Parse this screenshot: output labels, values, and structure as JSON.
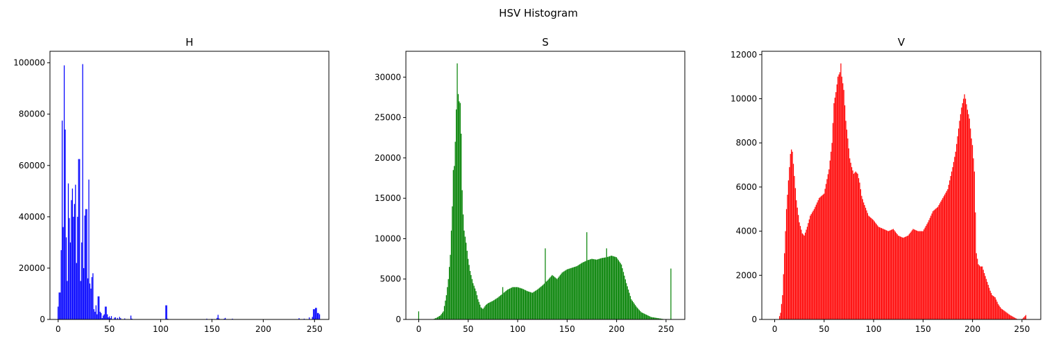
{
  "figure": {
    "suptitle": "HSV Histogram"
  },
  "chart_data": [
    {
      "type": "bar",
      "title": "H",
      "color": "#0000ff",
      "xlabel": "",
      "ylabel": "",
      "xlim": [
        -8,
        264
      ],
      "ylim": [
        0,
        104500
      ],
      "xticks": [
        0,
        50,
        100,
        150,
        200,
        250
      ],
      "yticks": [
        0,
        20000,
        40000,
        60000,
        80000,
        100000
      ],
      "grid": false,
      "x": [
        0,
        1,
        2,
        3,
        4,
        5,
        6,
        7,
        8,
        9,
        10,
        11,
        12,
        13,
        14,
        15,
        16,
        17,
        18,
        19,
        20,
        21,
        22,
        23,
        24,
        25,
        26,
        27,
        28,
        29,
        30,
        31,
        32,
        33,
        34,
        35,
        36,
        37,
        38,
        39,
        40,
        41,
        42,
        43,
        44,
        45,
        46,
        47,
        48,
        49,
        50,
        51,
        52,
        55,
        56,
        58,
        60,
        61,
        65,
        71,
        72,
        105,
        106,
        107,
        145,
        150,
        155,
        156,
        157,
        162,
        163,
        170,
        235,
        240,
        245,
        248,
        249,
        250,
        251,
        252,
        253,
        254,
        255
      ],
      "values": [
        5000,
        10500,
        10500,
        27000,
        77500,
        36000,
        99000,
        74000,
        32000,
        15000,
        53000,
        39500,
        30000,
        46500,
        51000,
        40000,
        45000,
        52500,
        22000,
        40000,
        62500,
        62500,
        15000,
        30000,
        99500,
        20000,
        40500,
        43000,
        43000,
        16000,
        54500,
        14000,
        12000,
        16500,
        18000,
        4000,
        3000,
        5500,
        2000,
        9000,
        9000,
        3000,
        2500,
        500,
        1500,
        2000,
        5000,
        5000,
        2000,
        800,
        1200,
        500,
        1300,
        700,
        800,
        600,
        1000,
        500,
        400,
        1500,
        300,
        5500,
        5500,
        300,
        300,
        200,
        600,
        1800,
        400,
        300,
        600,
        300,
        500,
        300,
        800,
        1000,
        4000,
        4000,
        4500,
        4500,
        2500,
        2500,
        2000
      ]
    },
    {
      "type": "bar",
      "title": "S",
      "color": "#008000",
      "xlabel": "",
      "ylabel": "",
      "xlim": [
        -13,
        269
      ],
      "ylim": [
        0,
        33200
      ],
      "xticks": [
        0,
        50,
        100,
        150,
        200,
        250
      ],
      "yticks": [
        0,
        5000,
        10000,
        15000,
        20000,
        25000,
        30000
      ],
      "grid": false,
      "curve_x": [
        0,
        14,
        18,
        22,
        25,
        28,
        30,
        32,
        34,
        35,
        36,
        37,
        38,
        39,
        40,
        41,
        42,
        43,
        44,
        45,
        46,
        48,
        50,
        52,
        55,
        58,
        60,
        63,
        65,
        68,
        70,
        75,
        80,
        85,
        90,
        95,
        100,
        105,
        110,
        115,
        120,
        125,
        130,
        135,
        140,
        145,
        150,
        155,
        160,
        165,
        170,
        175,
        180,
        185,
        190,
        195,
        200,
        205,
        210,
        215,
        220,
        225,
        230,
        235,
        240,
        245,
        250,
        255
      ],
      "curve_y": [
        0,
        0,
        200,
        500,
        1000,
        3000,
        5000,
        8000,
        14000,
        18500,
        19000,
        22000,
        26000,
        31000,
        28000,
        27000,
        26500,
        23000,
        16000,
        13000,
        11000,
        9500,
        7500,
        6000,
        4500,
        3500,
        2500,
        1500,
        1300,
        1800,
        2000,
        2300,
        2700,
        3200,
        3700,
        4000,
        4000,
        3800,
        3500,
        3300,
        3700,
        4200,
        4800,
        5500,
        5000,
        5800,
        6200,
        6400,
        6600,
        7000,
        7300,
        7500,
        7400,
        7600,
        7700,
        7900,
        7700,
        6800,
        4500,
        2500,
        1600,
        900,
        600,
        300,
        200,
        100,
        0,
        0
      ],
      "spikes": [
        [
          0,
          1000
        ],
        [
          85,
          4000
        ],
        [
          128,
          8800
        ],
        [
          170,
          10800
        ],
        [
          190,
          8800
        ],
        [
          255,
          6300
        ],
        [
          39,
          31700
        ],
        [
          40,
          27900
        ],
        [
          42,
          26800
        ]
      ]
    },
    {
      "type": "bar",
      "title": "V",
      "color": "#ff0000",
      "xlabel": "",
      "ylabel": "",
      "xlim": [
        -13,
        269
      ],
      "ylim": [
        0,
        12150
      ],
      "xticks": [
        0,
        50,
        100,
        150,
        200,
        250
      ],
      "yticks": [
        0,
        2000,
        4000,
        6000,
        8000,
        10000,
        12000
      ],
      "grid": false,
      "curve_x": [
        0,
        4,
        6,
        8,
        10,
        12,
        14,
        16,
        17,
        18,
        20,
        22,
        25,
        28,
        30,
        33,
        36,
        40,
        45,
        50,
        55,
        58,
        60,
        62,
        64,
        66,
        67,
        68,
        70,
        72,
        74,
        76,
        78,
        80,
        82,
        84,
        86,
        88,
        90,
        95,
        100,
        105,
        110,
        115,
        120,
        125,
        130,
        135,
        140,
        145,
        150,
        155,
        160,
        165,
        170,
        175,
        180,
        183,
        185,
        187,
        189,
        191,
        192,
        193,
        195,
        197,
        199,
        200,
        202,
        204,
        206,
        208,
        210,
        212,
        215,
        218,
        220,
        223,
        226,
        229,
        232,
        235,
        238,
        242,
        246,
        250,
        252,
        254,
        255
      ],
      "curve_y": [
        0,
        0,
        300,
        1100,
        3000,
        5000,
        6300,
        7500,
        7700,
        7600,
        6500,
        5400,
        4400,
        3900,
        3800,
        4200,
        4700,
        5000,
        5500,
        5700,
        6800,
        8000,
        9800,
        10300,
        11000,
        11200,
        11600,
        11000,
        10400,
        9000,
        8200,
        7300,
        6900,
        6600,
        6700,
        6600,
        6200,
        5600,
        5300,
        4700,
        4500,
        4200,
        4100,
        4000,
        4100,
        3800,
        3700,
        3800,
        4100,
        4000,
        4000,
        4400,
        4900,
        5100,
        5500,
        5900,
        6900,
        7600,
        8300,
        9000,
        9600,
        10000,
        10200,
        10000,
        9500,
        9100,
        8200,
        7900,
        6700,
        3000,
        2500,
        2400,
        2400,
        2100,
        1700,
        1300,
        1100,
        1000,
        700,
        500,
        400,
        300,
        200,
        100,
        0,
        0,
        100,
        200,
        0
      ]
    }
  ]
}
